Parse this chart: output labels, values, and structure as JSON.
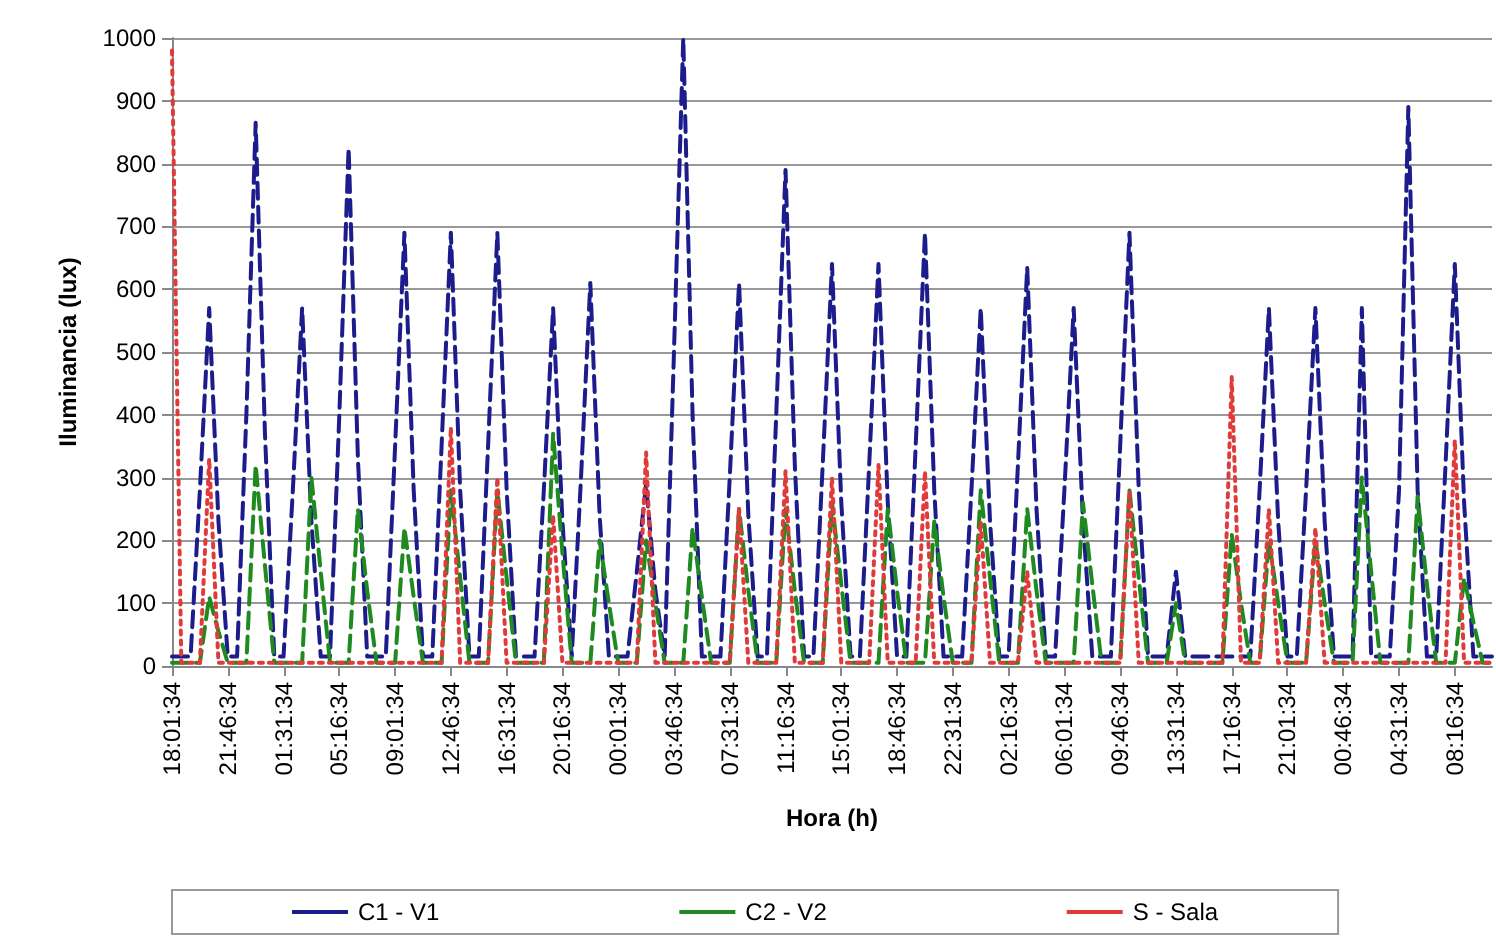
{
  "chart_data": {
    "type": "line",
    "xlabel": "Hora (h)",
    "ylabel": "Iluminancia (lux)",
    "ylim": [
      0,
      1000
    ],
    "categories": [
      "18:01:34",
      null,
      null,
      null,
      null,
      null,
      "21:46:34",
      null,
      null,
      null,
      null,
      null,
      "01:31:34",
      null,
      null,
      null,
      null,
      null,
      "05:16:34",
      null,
      null,
      null,
      null,
      null,
      "09:01:34",
      null,
      null,
      null,
      null,
      null,
      "12:46:34",
      null,
      null,
      null,
      null,
      null,
      "16:31:34",
      null,
      null,
      null,
      null,
      null,
      "20:16:34",
      null,
      null,
      null,
      null,
      null,
      "00:01:34",
      null,
      null,
      null,
      null,
      null,
      "03:46:34",
      null,
      null,
      null,
      null,
      null,
      "07:31:34",
      null,
      null,
      null,
      null,
      null,
      "11:16:34",
      null,
      null,
      null,
      null,
      null,
      "15:01:34",
      null,
      null,
      null,
      null,
      null,
      "18:46:34",
      null,
      null,
      null,
      null,
      null,
      "22:31:34",
      null,
      null,
      null,
      null,
      null,
      "02:16:34",
      null,
      null,
      null,
      null,
      null,
      "06:01:34",
      null,
      null,
      null,
      null,
      null,
      "09:46:34",
      null,
      null,
      null,
      null,
      null,
      "13:31:34",
      null,
      null,
      null,
      null,
      null,
      "17:16:34",
      null,
      null,
      null,
      null,
      null,
      "21:01:34",
      null,
      null,
      null,
      null,
      null,
      "00:46:34",
      null,
      null,
      null,
      null,
      null,
      "04:31:34",
      null,
      null,
      null,
      null,
      null,
      "08:16:34",
      null,
      null,
      null,
      null
    ],
    "yticks": [
      0,
      100,
      200,
      300,
      400,
      500,
      600,
      700,
      800,
      900,
      1000
    ],
    "grid": "y",
    "legend": "bottom",
    "marker": "none",
    "series": [
      {
        "name": "C1 - V1",
        "color": "#1c1c8c",
        "line_style": "dashed",
        "values": [
          15,
          15,
          15,
          280,
          570,
          230,
          15,
          15,
          400,
          865,
          370,
          15,
          15,
          280,
          570,
          230,
          15,
          15,
          400,
          825,
          330,
          15,
          15,
          15,
          350,
          690,
          280,
          15,
          15,
          350,
          690,
          280,
          15,
          15,
          350,
          690,
          280,
          15,
          15,
          15,
          280,
          570,
          230,
          15,
          300,
          610,
          240,
          15,
          15,
          15,
          150,
          290,
          120,
          15,
          500,
          1000,
          400,
          15,
          15,
          15,
          300,
          610,
          240,
          15,
          15,
          400,
          790,
          320,
          15,
          15,
          320,
          640,
          260,
          15,
          15,
          320,
          640,
          260,
          15,
          15,
          350,
          690,
          280,
          15,
          15,
          15,
          280,
          570,
          230,
          15,
          15,
          320,
          635,
          250,
          15,
          15,
          280,
          570,
          230,
          15,
          15,
          15,
          350,
          690,
          280,
          15,
          15,
          15,
          150,
          15,
          15,
          15,
          15,
          15,
          15,
          15,
          15,
          280,
          570,
          230,
          15,
          15,
          280,
          570,
          230,
          15,
          15,
          15,
          570,
          15,
          15,
          15,
          280,
          890,
          280,
          15,
          15,
          320,
          640,
          260,
          15,
          15,
          15
        ]
      },
      {
        "name": "C2 - V2",
        "color": "#1f8a1f",
        "line_style": "dashed",
        "values": [
          5,
          5,
          5,
          5,
          110,
          55,
          5,
          5,
          5,
          320,
          160,
          5,
          5,
          5,
          5,
          300,
          150,
          5,
          5,
          5,
          250,
          120,
          5,
          5,
          5,
          220,
          110,
          5,
          5,
          5,
          280,
          140,
          5,
          5,
          5,
          280,
          140,
          5,
          5,
          5,
          5,
          370,
          180,
          5,
          5,
          5,
          200,
          100,
          5,
          5,
          5,
          200,
          100,
          5,
          5,
          5,
          220,
          110,
          5,
          5,
          5,
          250,
          120,
          5,
          5,
          5,
          250,
          120,
          5,
          5,
          5,
          260,
          130,
          5,
          5,
          5,
          5,
          250,
          120,
          5,
          5,
          5,
          230,
          110,
          5,
          5,
          5,
          280,
          140,
          5,
          5,
          5,
          250,
          120,
          5,
          5,
          5,
          5,
          260,
          130,
          5,
          5,
          5,
          280,
          140,
          5,
          5,
          5,
          100,
          5,
          5,
          5,
          5,
          5,
          210,
          100,
          5,
          5,
          200,
          100,
          5,
          5,
          5,
          200,
          100,
          5,
          5,
          5,
          300,
          150,
          5,
          5,
          5,
          5,
          270,
          130,
          5,
          5,
          5,
          140,
          70,
          5,
          5
        ]
      },
      {
        "name": "S - Sala",
        "color": "#e03a3a",
        "line_style": "dotted",
        "values": [
          980,
          5,
          5,
          5,
          330,
          5,
          5,
          5,
          5,
          5,
          5,
          5,
          5,
          5,
          5,
          5,
          5,
          5,
          5,
          5,
          5,
          5,
          5,
          5,
          5,
          5,
          5,
          5,
          5,
          5,
          380,
          5,
          5,
          5,
          5,
          300,
          5,
          5,
          5,
          5,
          5,
          240,
          5,
          5,
          5,
          5,
          5,
          5,
          5,
          5,
          5,
          340,
          5,
          5,
          5,
          5,
          5,
          5,
          5,
          5,
          5,
          250,
          5,
          5,
          5,
          5,
          310,
          5,
          5,
          5,
          5,
          300,
          5,
          5,
          5,
          5,
          320,
          5,
          5,
          5,
          5,
          310,
          5,
          5,
          5,
          5,
          5,
          230,
          5,
          5,
          5,
          5,
          150,
          5,
          5,
          5,
          5,
          5,
          5,
          5,
          5,
          5,
          5,
          280,
          5,
          5,
          5,
          5,
          5,
          5,
          5,
          5,
          5,
          5,
          460,
          5,
          5,
          5,
          250,
          5,
          5,
          5,
          5,
          220,
          5,
          5,
          5,
          5,
          5,
          5,
          5,
          5,
          5,
          5,
          5,
          5,
          5,
          5,
          360,
          5,
          5,
          5,
          5
        ]
      }
    ]
  }
}
